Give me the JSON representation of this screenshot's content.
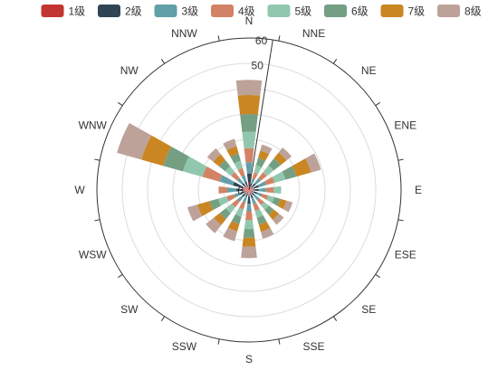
{
  "chart_data": {
    "type": "bar",
    "subtype": "polar-stacked-rose",
    "angle_categories": [
      "N",
      "NNE",
      "NE",
      "ENE",
      "E",
      "ESE",
      "SE",
      "SSE",
      "S",
      "SSW",
      "SW",
      "WSW",
      "W",
      "WNW",
      "NW",
      "NNW"
    ],
    "radius_range": [
      0,
      60
    ],
    "radius_ticks": [
      0,
      10,
      20,
      30,
      40,
      50,
      60
    ],
    "visible_tick_labels": [
      "60",
      "50",
      "0"
    ],
    "grid": true,
    "legend_position": "top-center",
    "series": [
      {
        "name": "1级",
        "color": "#c23531",
        "values": [
          3.0,
          1.2,
          1.4,
          1.8,
          1.5,
          1.6,
          1.3,
          1.4,
          2.4,
          1.3,
          1.5,
          1.6,
          2.6,
          2.6,
          1.5,
          1.5
        ]
      },
      {
        "name": "2级",
        "color": "#2f4554",
        "values": [
          3.5,
          1.5,
          2.0,
          2.2,
          2.4,
          1.8,
          1.6,
          2.0,
          3.0,
          1.5,
          2.0,
          2.0,
          2.5,
          4.0,
          2.0,
          2.0
        ]
      },
      {
        "name": "3级",
        "color": "#61a0a8",
        "values": [
          4.5,
          2.0,
          2.5,
          3.0,
          2.8,
          2.0,
          2.2,
          2.4,
          3.0,
          2.4,
          2.4,
          2.6,
          3.5,
          5.5,
          2.5,
          2.5
        ]
      },
      {
        "name": "4级",
        "color": "#d48265",
        "values": [
          5.5,
          2.5,
          3.0,
          3.5,
          3.0,
          2.5,
          2.5,
          2.8,
          3.5,
          2.8,
          2.8,
          3.0,
          3.4,
          7.0,
          3.0,
          3.0
        ]
      },
      {
        "name": "5级",
        "color": "#91c7ae",
        "values": [
          6.5,
          3.0,
          3.5,
          4.5,
          3.0,
          2.5,
          2.4,
          2.8,
          3.5,
          3.0,
          3.0,
          3.5,
          0,
          8.0,
          3.0,
          3.0
        ]
      },
      {
        "name": "6级",
        "color": "#749f83",
        "values": [
          7.0,
          3.0,
          3.5,
          4.5,
          0,
          2.5,
          2.5,
          2.8,
          3.5,
          3.0,
          3.0,
          3.5,
          0,
          8.0,
          3.0,
          3.0
        ]
      },
      {
        "name": "7级",
        "color": "#ca8622",
        "values": [
          7.5,
          3.0,
          3.0,
          6.0,
          0,
          2.5,
          2.5,
          3.0,
          3.5,
          3.0,
          3.0,
          5.0,
          0,
          9.0,
          3.0,
          3.0
        ]
      },
      {
        "name": "8级",
        "color": "#bda29a",
        "values": [
          6.0,
          2.5,
          2.5,
          4.0,
          0,
          2.5,
          2.5,
          2.8,
          4.5,
          4.0,
          4.0,
          4.0,
          0,
          10.0,
          3.0,
          3.0
        ]
      }
    ]
  }
}
